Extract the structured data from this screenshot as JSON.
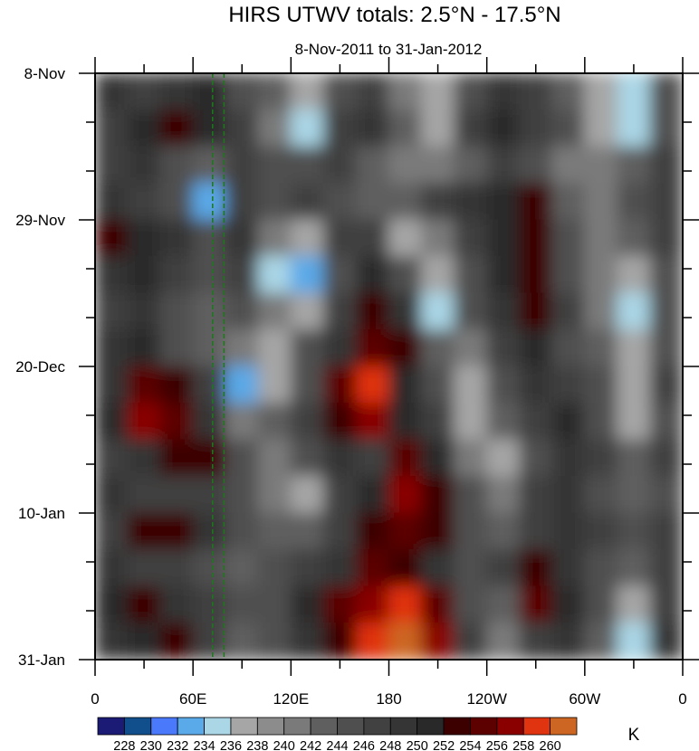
{
  "chart_data": {
    "type": "heatmap",
    "title": "HIRS UTWV totals: 2.5°N - 17.5°N",
    "subtitle": "8-Nov-2011 to 31-Jan-2012",
    "xlabel": "",
    "ylabel": "",
    "units": "K",
    "x_ticks": [
      "0",
      "60E",
      "120E",
      "180",
      "120W",
      "60W",
      "0"
    ],
    "x_tick_values": [
      0,
      60,
      120,
      180,
      240,
      300,
      360
    ],
    "xlim": [
      0,
      360
    ],
    "y_ticks": [
      "8-Nov",
      "29-Nov",
      "20-Dec",
      "10-Jan",
      "31-Jan"
    ],
    "y_tick_days": [
      0,
      21,
      42,
      63,
      84
    ],
    "ylim_days": [
      0,
      84
    ],
    "reference_lines_lon": [
      72,
      79
    ],
    "levels": [
      228,
      230,
      232,
      234,
      236,
      238,
      240,
      242,
      244,
      246,
      248,
      250,
      252,
      254,
      256,
      258,
      260
    ],
    "colors": [
      "#1b1b76",
      "#104f8c",
      "#4a79fc",
      "#5aa9e8",
      "#aad6e6",
      "#a6a6a6",
      "#8c8c8c",
      "#7a7a7a",
      "#5f5f5f",
      "#4f4f4f",
      "#414141",
      "#353535",
      "#292929",
      "#3c0000",
      "#5c0000",
      "#8a0000",
      "#e0330f",
      "#cc6622"
    ],
    "grid_lon_centers": [
      10,
      30,
      50,
      70,
      90,
      110,
      130,
      150,
      170,
      190,
      210,
      230,
      250,
      270,
      290,
      310,
      330,
      350
    ],
    "grid_day_centers": [
      2.6,
      7.9,
      13.1,
      18.4,
      23.6,
      28.9,
      34.1,
      39.4,
      44.6,
      49.9,
      55.1,
      60.4,
      65.6,
      70.9,
      76.1,
      81.4
    ],
    "values": [
      [
        248,
        246,
        248,
        251,
        244,
        242,
        237,
        244,
        246,
        240,
        237,
        244,
        248,
        246,
        242,
        237,
        235,
        244
      ],
      [
        246,
        250,
        252,
        250,
        246,
        240,
        235,
        246,
        248,
        242,
        237,
        246,
        250,
        246,
        244,
        237,
        235,
        244
      ],
      [
        246,
        248,
        244,
        242,
        246,
        244,
        244,
        246,
        242,
        240,
        240,
        242,
        246,
        244,
        240,
        240,
        242,
        246
      ],
      [
        248,
        246,
        244,
        233,
        246,
        244,
        246,
        244,
        242,
        242,
        246,
        248,
        250,
        252,
        242,
        240,
        244,
        246
      ],
      [
        252,
        250,
        248,
        244,
        248,
        240,
        237,
        246,
        246,
        237,
        240,
        246,
        250,
        252,
        244,
        240,
        242,
        246
      ],
      [
        248,
        250,
        246,
        244,
        246,
        235,
        233,
        244,
        250,
        244,
        237,
        244,
        250,
        252,
        244,
        240,
        237,
        244
      ],
      [
        246,
        248,
        244,
        242,
        244,
        240,
        237,
        246,
        252,
        248,
        235,
        244,
        248,
        252,
        246,
        240,
        235,
        244
      ],
      [
        248,
        250,
        244,
        242,
        240,
        237,
        244,
        248,
        254,
        252,
        242,
        240,
        246,
        250,
        244,
        242,
        237,
        244
      ],
      [
        248,
        254,
        252,
        246,
        233,
        237,
        244,
        254,
        258,
        250,
        244,
        237,
        244,
        248,
        246,
        244,
        237,
        246
      ],
      [
        250,
        256,
        254,
        248,
        240,
        242,
        246,
        252,
        256,
        250,
        246,
        237,
        242,
        246,
        250,
        244,
        237,
        244
      ],
      [
        246,
        248,
        252,
        252,
        244,
        240,
        244,
        248,
        246,
        254,
        250,
        240,
        237,
        244,
        248,
        246,
        242,
        246
      ],
      [
        248,
        246,
        246,
        246,
        244,
        240,
        237,
        246,
        250,
        256,
        252,
        244,
        240,
        246,
        248,
        244,
        242,
        244
      ],
      [
        246,
        252,
        252,
        248,
        244,
        242,
        242,
        246,
        252,
        254,
        252,
        244,
        242,
        246,
        248,
        246,
        244,
        246
      ],
      [
        248,
        246,
        246,
        244,
        242,
        244,
        246,
        248,
        254,
        252,
        248,
        244,
        246,
        252,
        248,
        244,
        242,
        246
      ],
      [
        250,
        252,
        248,
        246,
        244,
        244,
        250,
        254,
        256,
        258,
        254,
        244,
        242,
        254,
        250,
        244,
        237,
        246
      ],
      [
        248,
        250,
        252,
        246,
        242,
        244,
        248,
        252,
        258,
        260,
        256,
        246,
        240,
        246,
        248,
        242,
        235,
        248
      ]
    ]
  }
}
